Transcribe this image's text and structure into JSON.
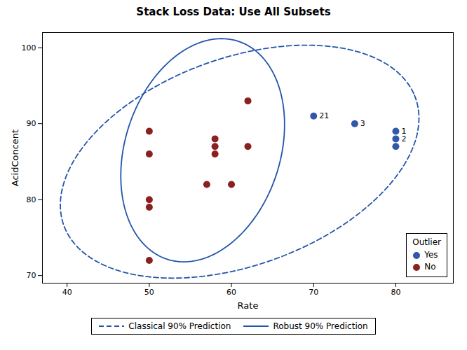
{
  "chart_data": {
    "type": "scatter",
    "title": "Stack Loss Data: Use All Subsets",
    "x_label": "Rate",
    "y_label": "AcidConcent",
    "xlim": [
      37,
      87
    ],
    "ylim": [
      69,
      102
    ],
    "xticks": [
      40,
      50,
      60,
      70,
      80
    ],
    "yticks": [
      70,
      80,
      90,
      100
    ],
    "grid": false,
    "legend": "lower right",
    "legend_title": "Outlier",
    "series": [
      {
        "name": "Yes",
        "color": "#3357aa",
        "marker": "circle",
        "x": [
          70,
          75,
          80,
          80,
          80
        ],
        "y": [
          91,
          90,
          89,
          88,
          87
        ]
      },
      {
        "name": "No",
        "color": "#8b2020",
        "marker": "circle",
        "x": [
          50,
          50,
          50,
          50,
          50,
          57,
          58,
          58,
          58,
          60,
          62,
          62
        ],
        "y": [
          89,
          86,
          80,
          79,
          72,
          82,
          88,
          87,
          86,
          82,
          93,
          87
        ]
      }
    ],
    "annotations": [
      {
        "text": "21",
        "x": 70,
        "y": 91
      },
      {
        "text": "3",
        "x": 75,
        "y": 90
      },
      {
        "text": "1",
        "x": 80,
        "y": 89
      },
      {
        "text": "2",
        "x": 80,
        "y": 88
      }
    ],
    "ellipses": [
      {
        "name": "Classical 90% Prediction",
        "color": "#2255aa",
        "line_style": "dashed",
        "cx": 61,
        "cy": 85,
        "width": 46,
        "height": 27,
        "angle": 23
      },
      {
        "name": "Robust 90% Prediction",
        "color": "#2255aa",
        "line_style": "solid",
        "cx": 56.5,
        "cy": 86.5,
        "width": 19,
        "height": 30,
        "angle": -15
      }
    ]
  }
}
